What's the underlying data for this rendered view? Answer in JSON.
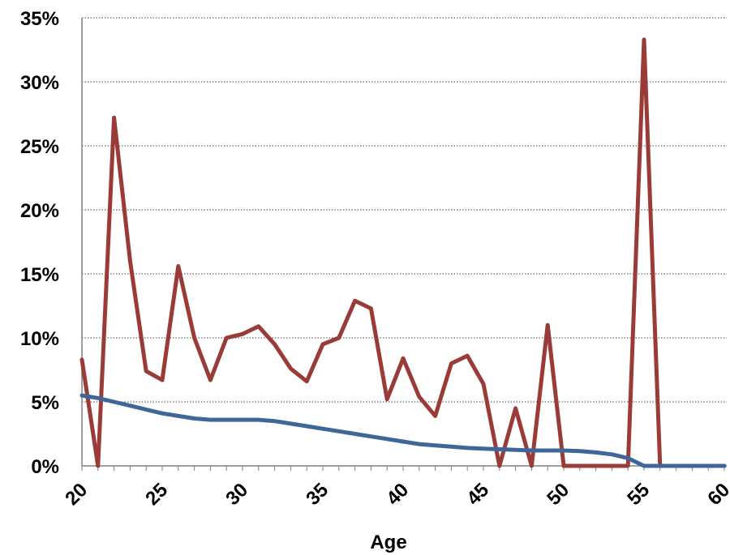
{
  "chart_data": {
    "type": "line",
    "title": "",
    "xlabel": "Age",
    "ylabel": "",
    "xlim": [
      20,
      60
    ],
    "ylim": [
      0,
      35
    ],
    "x_ticks": [
      20,
      25,
      30,
      35,
      40,
      45,
      50,
      55,
      60
    ],
    "y_ticks": [
      0,
      5,
      10,
      15,
      20,
      25,
      30,
      35
    ],
    "y_tick_labels": [
      "0%",
      "5%",
      "10%",
      "15%",
      "20%",
      "25%",
      "30%",
      "35%"
    ],
    "grid": "horizontal dotted",
    "legend": "none",
    "series": [
      {
        "color": "#9b3b37",
        "x": [
          20,
          21,
          22,
          23,
          24,
          25,
          26,
          27,
          28,
          29,
          30,
          31,
          32,
          33,
          34,
          35,
          36,
          37,
          38,
          39,
          40,
          41,
          42,
          43,
          44,
          45,
          46,
          47,
          48,
          49,
          50,
          51,
          52,
          53,
          54,
          55,
          56,
          57,
          58,
          59,
          60
        ],
        "values": [
          8.3,
          0,
          27.2,
          16.0,
          7.4,
          6.7,
          15.6,
          10.0,
          6.7,
          10.0,
          10.3,
          10.9,
          9.5,
          7.6,
          6.6,
          9.5,
          10.0,
          12.9,
          12.3,
          5.2,
          8.4,
          5.4,
          3.9,
          8.0,
          8.6,
          6.4,
          0,
          4.5,
          0,
          11.0,
          0,
          0,
          0,
          0,
          0,
          33.3,
          0,
          0,
          0,
          0,
          0
        ]
      },
      {
        "color": "#3e6699",
        "x": [
          20,
          21,
          22,
          23,
          24,
          25,
          26,
          27,
          28,
          29,
          30,
          31,
          32,
          33,
          34,
          35,
          36,
          37,
          38,
          39,
          40,
          41,
          42,
          43,
          44,
          45,
          46,
          47,
          48,
          49,
          50,
          51,
          52,
          53,
          54,
          55,
          56,
          57,
          58,
          59,
          60
        ],
        "values": [
          5.5,
          5.3,
          5.0,
          4.7,
          4.4,
          4.1,
          3.9,
          3.7,
          3.6,
          3.6,
          3.6,
          3.6,
          3.5,
          3.3,
          3.1,
          2.9,
          2.7,
          2.5,
          2.3,
          2.1,
          1.9,
          1.7,
          1.6,
          1.5,
          1.4,
          1.35,
          1.3,
          1.25,
          1.2,
          1.2,
          1.2,
          1.15,
          1.05,
          0.9,
          0.6,
          0,
          0,
          0,
          0,
          0,
          0
        ]
      }
    ]
  }
}
